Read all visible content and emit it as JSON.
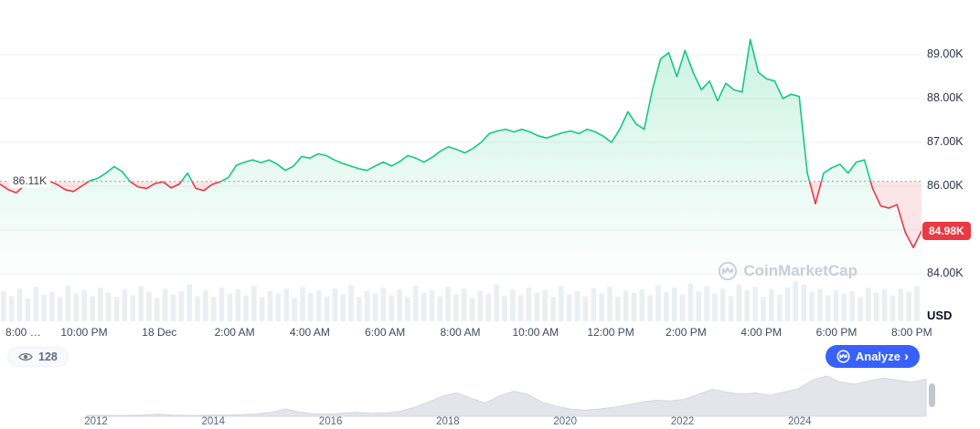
{
  "baseline_label": "86.11K",
  "watermark": {
    "text": "CoinMarketCap"
  },
  "y_axis": {
    "current_badge": "84.98K",
    "unit": "USD"
  },
  "controls": {
    "views": "128",
    "analyze_label": "Analyze",
    "chevron": "›"
  },
  "colors": {
    "up": "#16c784",
    "down": "#ea3943",
    "accent_blue": "#3861fb",
    "badge_red": "#ea3943",
    "grid": "#edf0f4",
    "volume_bar": "#eceff2",
    "history_fill": "#e2e6ea"
  },
  "chart_data": [
    {
      "type": "line",
      "name": "price-24h",
      "unit": "USD",
      "baseline": 86.11,
      "current_price": 84.98,
      "ylim": [
        84.0,
        89.5
      ],
      "gridline_prices": [
        89,
        88,
        87,
        86,
        85,
        84
      ],
      "y_ticks": [
        {
          "label": "89.00K",
          "price": 89.0
        },
        {
          "label": "88.00K",
          "price": 88.0
        },
        {
          "label": "87.00K",
          "price": 87.0
        },
        {
          "label": "86.00K",
          "price": 86.0
        },
        {
          "label": "84.00K",
          "price": 84.0
        }
      ],
      "x_labels": [
        "8:00 …",
        "10:00 PM",
        "18 Dec",
        "2:00 AM",
        "4:00 AM",
        "6:00 AM",
        "8:00 AM",
        "10:00 AM",
        "12:00 PM",
        "2:00 PM",
        "4:00 PM",
        "6:00 PM",
        "8:00 PM"
      ],
      "prices": [
        86.05,
        85.92,
        85.85,
        86.02,
        86.1,
        86.06,
        86.12,
        86.04,
        85.92,
        85.88,
        86.0,
        86.12,
        86.18,
        86.3,
        86.45,
        86.33,
        86.1,
        85.98,
        85.95,
        86.06,
        86.1,
        85.96,
        86.05,
        86.3,
        85.95,
        85.9,
        86.04,
        86.1,
        86.2,
        86.48,
        86.55,
        86.6,
        86.54,
        86.6,
        86.5,
        86.36,
        86.46,
        86.68,
        86.64,
        86.74,
        86.7,
        86.6,
        86.52,
        86.46,
        86.4,
        86.36,
        86.46,
        86.55,
        86.46,
        86.56,
        86.7,
        86.64,
        86.55,
        86.66,
        86.8,
        86.9,
        86.84,
        86.76,
        86.86,
        87.0,
        87.2,
        87.26,
        87.3,
        87.24,
        87.3,
        87.24,
        87.15,
        87.1,
        87.16,
        87.22,
        87.26,
        87.2,
        87.3,
        87.24,
        87.14,
        87.0,
        87.3,
        87.7,
        87.42,
        87.3,
        88.2,
        88.9,
        89.05,
        88.5,
        89.1,
        88.6,
        88.2,
        88.4,
        87.95,
        88.35,
        88.2,
        88.15,
        89.35,
        88.6,
        88.45,
        88.4,
        88.0,
        88.1,
        88.05,
        86.3,
        85.6,
        86.3,
        86.42,
        86.5,
        86.3,
        86.55,
        86.6,
        85.95,
        85.55,
        85.5,
        85.58,
        84.95,
        84.6,
        84.98
      ]
    },
    {
      "type": "bar",
      "name": "volume",
      "values": [
        0.72,
        0.6,
        0.78,
        0.55,
        0.82,
        0.64,
        0.7,
        0.58,
        0.85,
        0.66,
        0.74,
        0.6,
        0.8,
        0.68,
        0.58,
        0.76,
        0.62,
        0.84,
        0.7,
        0.56,
        0.78,
        0.64,
        0.72,
        0.88,
        0.6,
        0.74,
        0.58,
        0.8,
        0.66,
        0.76,
        0.62,
        0.84,
        0.58,
        0.72,
        0.66,
        0.78,
        0.56,
        0.82,
        0.68,
        0.74,
        0.6,
        0.78,
        0.64,
        0.86,
        0.58,
        0.72,
        0.66,
        0.8,
        0.62,
        0.76,
        0.58,
        0.84,
        0.68,
        0.74,
        0.6,
        0.82,
        0.64,
        0.78,
        0.56,
        0.72,
        0.66,
        0.88,
        0.6,
        0.76,
        0.62,
        0.8,
        0.68,
        0.74,
        0.58,
        0.84,
        0.64,
        0.72,
        0.6,
        0.78,
        0.66,
        0.82,
        0.58,
        0.74,
        0.68,
        0.76,
        0.62,
        0.86,
        0.7,
        0.8,
        0.64,
        0.9,
        0.72,
        0.84,
        0.66,
        0.78,
        0.6,
        0.88,
        0.74,
        0.82,
        0.58,
        0.76,
        0.64,
        0.8,
        0.95,
        0.88,
        0.7,
        0.78,
        0.62,
        0.74,
        0.66,
        0.72,
        0.58,
        0.8,
        0.68,
        0.76,
        0.62,
        0.78,
        0.7,
        0.84
      ]
    },
    {
      "type": "area",
      "name": "all-time-history-range-selector",
      "year_labels": [
        "2012",
        "2014",
        "2016",
        "2018",
        "2020",
        "2022",
        "2024"
      ],
      "values": [
        0.02,
        0.02,
        0.02,
        0.02,
        0.03,
        0.05,
        0.03,
        0.02,
        0.02,
        0.03,
        0.03,
        0.04,
        0.06,
        0.1,
        0.18,
        0.1,
        0.06,
        0.05,
        0.08,
        0.1,
        0.07,
        0.08,
        0.12,
        0.22,
        0.35,
        0.5,
        0.58,
        0.45,
        0.33,
        0.5,
        0.62,
        0.55,
        0.35,
        0.25,
        0.18,
        0.15,
        0.18,
        0.22,
        0.28,
        0.35,
        0.4,
        0.38,
        0.42,
        0.55,
        0.67,
        0.6,
        0.55,
        0.58,
        0.52,
        0.6,
        0.68,
        0.9,
        1.0,
        0.85,
        0.8,
        0.88,
        0.95,
        0.9,
        0.85,
        0.92
      ]
    }
  ]
}
